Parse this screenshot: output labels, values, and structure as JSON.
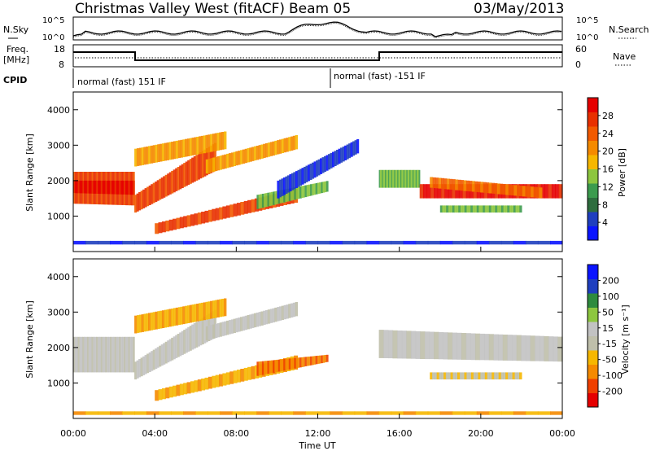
{
  "header": {
    "title": "Christmas Valley West (fitACF)",
    "beam": "Beam 05",
    "date": "03/May/2013"
  },
  "noise_panel": {
    "left_label": "N.Sky",
    "right_label": "N.Search",
    "left_ticks": [
      "10^5",
      "10^0"
    ],
    "right_ticks": [
      "10^5",
      "10^0"
    ]
  },
  "freq_panel": {
    "left_label_1": "Freq.",
    "left_label_2": "[MHz]",
    "right_label": "Nave",
    "left_ticks": [
      "18",
      "8"
    ],
    "right_ticks": [
      "60",
      "0"
    ]
  },
  "cpid": {
    "label": "CPID",
    "segments": [
      {
        "text": "normal (fast) 151 IF",
        "start_hour": 0
      },
      {
        "text": "normal (fast) -151 IF",
        "start_hour": 12.6
      }
    ]
  },
  "colors": {
    "power": [
      "#0a14ff",
      "#1f3fbf",
      "#2e6d3e",
      "#3c9b4e",
      "#8dc63f",
      "#f6b700",
      "#f58a00",
      "#f25a00",
      "#e83000",
      "#e60000"
    ],
    "velocity": [
      "#e60000",
      "#f04000",
      "#f58a00",
      "#f6b700",
      "#bfbfaa",
      "#c2c2c2",
      "#8dc63f",
      "#2e8b3e",
      "#1f3fbf",
      "#0a14ff"
    ]
  },
  "chart_data": [
    {
      "type": "heatmap",
      "name": "power",
      "ylabel": "Slant Range [km]",
      "colorbar_label": "Power [dB]",
      "colorbar_ticks": [
        "4",
        "8",
        "12",
        "16",
        "20",
        "24",
        "28"
      ],
      "colorbar_range": [
        0,
        32
      ],
      "ylim": [
        0,
        4500
      ],
      "yticks": [
        "1000",
        "2000",
        "3000",
        "4000"
      ],
      "xlim": [
        0,
        24
      ],
      "xticks": [
        "00:00",
        "04:00",
        "08:00",
        "12:00",
        "16:00",
        "20:00",
        "00:00"
      ],
      "xlabel": "Time UT"
    },
    {
      "type": "heatmap",
      "name": "velocity",
      "ylabel": "Slant Range [km]",
      "colorbar_label": "Velocity [m s⁻¹]",
      "colorbar_ticks": [
        "-200",
        "-100",
        "-50",
        "-15",
        "15",
        "50",
        "100",
        "200"
      ],
      "ylim": [
        0,
        4500
      ],
      "yticks": [
        "1000",
        "2000",
        "3000",
        "4000"
      ],
      "xlim": [
        0,
        24
      ],
      "xticks": [
        "00:00",
        "04:00",
        "08:00",
        "12:00",
        "16:00",
        "20:00",
        "00:00"
      ],
      "xlabel": "Time UT"
    }
  ]
}
